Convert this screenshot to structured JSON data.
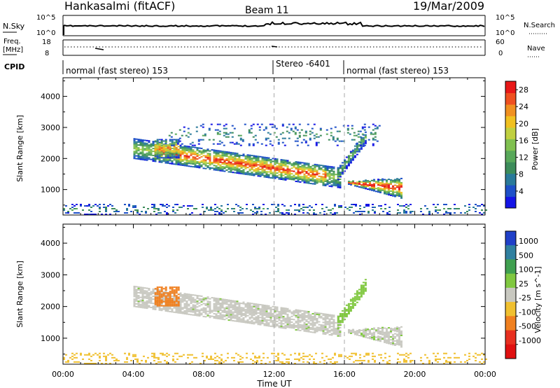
{
  "header": {
    "station": "Hankasalmi (fitACF)",
    "beam": "Beam 11",
    "date": "19/Mar/2009"
  },
  "top_panels": {
    "nsky_label": "N.Sky",
    "nsky_ticks": [
      "10^5",
      "10^0"
    ],
    "nsearch_label": "N.Search",
    "nsearch_ticks": [
      "10^5",
      "10^0"
    ],
    "freq_label": "Freq.",
    "freq_unit": "[MHz]",
    "freq_ticks": [
      "18",
      "8"
    ],
    "nave_label": "Nave",
    "nave_ticks": [
      "60",
      "0"
    ],
    "cpid_label": "CPID",
    "cpid_segments": [
      {
        "label": "normal (fast stereo) 153",
        "start_hour": 0,
        "end_hour": 12
      },
      {
        "label": "Stereo -6401",
        "start_hour": 12,
        "end_hour": 16
      },
      {
        "label": "normal (fast stereo) 153",
        "start_hour": 16,
        "end_hour": 24
      }
    ]
  },
  "x_axis": {
    "label": "Time UT",
    "ticks": [
      "00:00",
      "04:00",
      "08:00",
      "12:00",
      "16:00",
      "20:00",
      "00:00"
    ],
    "range_hours": [
      0,
      24
    ],
    "dashed_markers_hours": [
      12,
      16
    ]
  },
  "chart_data": [
    {
      "type": "heatmap",
      "panel": "power",
      "xlabel": "Time UT",
      "ylabel": "Slant Range [km]",
      "y_ticks": [
        "1000",
        "2000",
        "3000",
        "4000"
      ],
      "xlim_hours": [
        0,
        24
      ],
      "ylim_km": [
        180,
        4600
      ],
      "colorbar": {
        "label": "Power [dB]",
        "ticks": [
          "4",
          "8",
          "12",
          "16",
          "20",
          "24",
          "28"
        ],
        "range": [
          0,
          30
        ],
        "colors": [
          "#1414e6",
          "#1e50c8",
          "#2a7a9a",
          "#3c8c5a",
          "#58a85a",
          "#80c050",
          "#c0d040",
          "#f0c020",
          "#f09020",
          "#ef5020",
          "#e81818"
        ]
      },
      "echo_regions": [
        {
          "name": "main band",
          "hours": [
            4.0,
            15.8
          ],
          "range_km_start": [
            2300,
            1350
          ],
          "peak_db": 28
        },
        {
          "name": "early patch",
          "hours": [
            5.2,
            6.6
          ],
          "range_km": [
            2000,
            2600
          ],
          "peak_db": 24
        },
        {
          "name": "late band",
          "hours": [
            16.2,
            19.2
          ],
          "range_km": [
            700,
            1350
          ],
          "peak_db": 30
        },
        {
          "name": "rising arc",
          "hours": [
            15.6,
            17.2
          ],
          "range_km": [
            1500,
            2700
          ],
          "peak_db": 14
        },
        {
          "name": "far range patches",
          "hours": [
            6.0,
            18.0
          ],
          "range_km": [
            2400,
            3100
          ],
          "peak_db": 10
        },
        {
          "name": "near range noise",
          "hours": [
            0,
            24
          ],
          "range_km": [
            180,
            500
          ],
          "peak_db": 10
        }
      ]
    },
    {
      "type": "heatmap",
      "panel": "velocity",
      "xlabel": "Time UT",
      "ylabel": "Slant Range [km]",
      "y_ticks": [
        "1000",
        "2000",
        "3000",
        "4000"
      ],
      "xlim_hours": [
        0,
        24
      ],
      "ylim_km": [
        180,
        4600
      ],
      "colorbar": {
        "label": "Velocity [m s^-1]",
        "ticks": [
          "1000",
          "500",
          "100",
          "25",
          "-25",
          "-100",
          "-500",
          "-1000"
        ],
        "colors": [
          "#2040c8",
          "#3080a0",
          "#40a050",
          "#80c840",
          "#c8c8c0",
          "#f0c030",
          "#f08020",
          "#e83020",
          "#e01010"
        ]
      },
      "echo_regions": [
        {
          "name": "main band",
          "hours": [
            4.0,
            15.8
          ],
          "velocity_class": "-25..25"
        },
        {
          "name": "early patch",
          "hours": [
            4.8,
            6.5
          ],
          "velocity_class": "-100..-500"
        },
        {
          "name": "late band",
          "hours": [
            16.2,
            19.2
          ],
          "velocity_class": "-25..25"
        },
        {
          "name": "rising arc",
          "hours": [
            15.8,
            17.8
          ],
          "velocity_class": "25..100"
        },
        {
          "name": "near range noise",
          "hours": [
            0,
            24
          ],
          "velocity_class": "-25..-100"
        }
      ]
    }
  ]
}
